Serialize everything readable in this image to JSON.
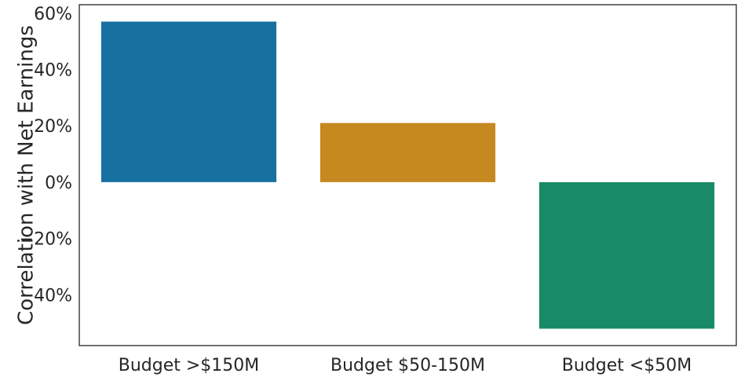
{
  "chart_data": {
    "type": "bar",
    "categories": [
      "Budget >$150M",
      "Budget $50-150M",
      "Budget <$50M"
    ],
    "values": [
      0.57,
      0.21,
      -0.52
    ],
    "colors": [
      "#1870a0",
      "#c5891f",
      "#188a68"
    ],
    "ylabel": "Correlation with Net Earnings",
    "xlabel": "",
    "ylim": [
      -0.58,
      0.63
    ],
    "yticks": [
      -0.4,
      -0.2,
      0,
      0.2,
      0.4,
      0.6
    ],
    "ytick_labels": [
      "−40%",
      "−20%",
      "0%",
      "20%",
      "40%",
      "60%"
    ],
    "grid": false,
    "axis_color": "#262626"
  }
}
